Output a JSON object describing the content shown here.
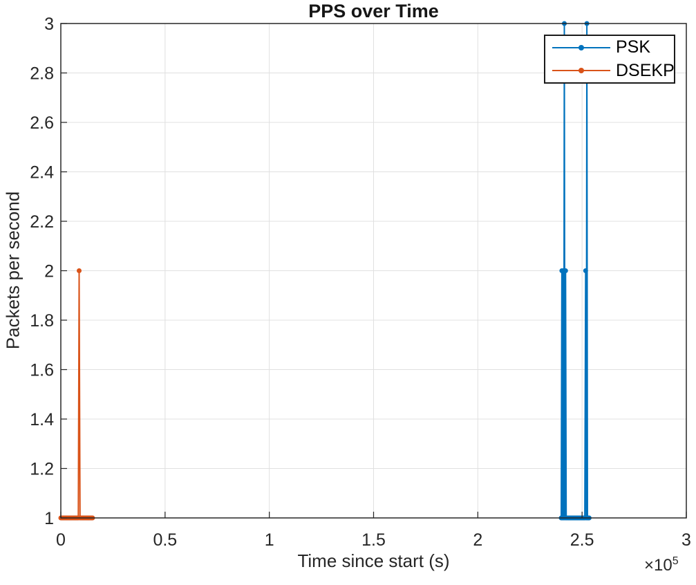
{
  "title": "PPS over Time",
  "axes": {
    "xlabel": "Time since start (s)",
    "ylabel": "Packets per second",
    "exponent_base": "×10",
    "exponent_power": "5"
  },
  "legend": {
    "position": "northeast",
    "entries": [
      {
        "label": "PSK",
        "color": "#0072BD"
      },
      {
        "label": "DSEKP",
        "color": "#D95319"
      }
    ]
  },
  "colors": {
    "grid": "#e0e0e0",
    "axis": "#262626",
    "tick_label": "#262626",
    "background": "#ffffff",
    "psk": "#0072BD",
    "dsekp": "#D95319"
  },
  "chart_data": {
    "type": "line",
    "title": "PPS over Time",
    "xlabel": "Time since start (s)",
    "ylabel": "Packets per second",
    "xlim": [
      0,
      300000
    ],
    "ylim": [
      1,
      3
    ],
    "grid": "on",
    "legend_position": "northeast",
    "x_multiplier_label": "×10⁵",
    "xticks": [
      {
        "v": 0,
        "label": "0"
      },
      {
        "v": 50000,
        "label": "0.5"
      },
      {
        "v": 100000,
        "label": "1"
      },
      {
        "v": 150000,
        "label": "1.5"
      },
      {
        "v": 200000,
        "label": "2"
      },
      {
        "v": 250000,
        "label": "2.5"
      },
      {
        "v": 300000,
        "label": "3"
      }
    ],
    "yticks": [
      {
        "v": 1,
        "label": "1"
      },
      {
        "v": 1.2,
        "label": "1.2"
      },
      {
        "v": 1.4,
        "label": "1.4"
      },
      {
        "v": 1.6,
        "label": "1.6"
      },
      {
        "v": 1.8,
        "label": "1.8"
      },
      {
        "v": 2,
        "label": "2"
      },
      {
        "v": 2.2,
        "label": "2.2"
      },
      {
        "v": 2.4,
        "label": "2.4"
      },
      {
        "v": 2.6,
        "label": "2.6"
      },
      {
        "v": 2.8,
        "label": "2.8"
      },
      {
        "v": 3,
        "label": "3"
      }
    ],
    "series": [
      {
        "name": "PSK",
        "color": "#0072BD",
        "marker": "dot",
        "points": [
          [
            240000,
            1
          ],
          [
            240300,
            2
          ],
          [
            240600,
            1
          ],
          [
            240900,
            2
          ],
          [
            241200,
            1
          ],
          [
            241500,
            3
          ],
          [
            241800,
            1
          ],
          [
            242100,
            2
          ],
          [
            242400,
            1
          ],
          [
            242900,
            1
          ],
          [
            243400,
            1
          ],
          [
            243900,
            1
          ],
          [
            244400,
            1
          ],
          [
            244900,
            1
          ],
          [
            245400,
            1
          ],
          [
            245900,
            1
          ],
          [
            246400,
            1
          ],
          [
            246900,
            1
          ],
          [
            247400,
            1
          ],
          [
            247900,
            1
          ],
          [
            248400,
            1
          ],
          [
            248900,
            1
          ],
          [
            249400,
            1
          ],
          [
            249900,
            1
          ],
          [
            250400,
            1
          ],
          [
            250900,
            1
          ],
          [
            251300,
            1
          ],
          [
            251700,
            2
          ],
          [
            252000,
            1
          ],
          [
            252300,
            3
          ],
          [
            252600,
            1
          ],
          [
            253000,
            1
          ],
          [
            253400,
            1
          ]
        ]
      },
      {
        "name": "DSEKP",
        "color": "#D95319",
        "marker": "dot",
        "points": [
          [
            0,
            1
          ],
          [
            400,
            1
          ],
          [
            800,
            1
          ],
          [
            1200,
            1
          ],
          [
            1600,
            1
          ],
          [
            2000,
            1
          ],
          [
            2400,
            1
          ],
          [
            2800,
            1
          ],
          [
            3200,
            1
          ],
          [
            3600,
            1
          ],
          [
            4000,
            1
          ],
          [
            4400,
            1
          ],
          [
            4800,
            1
          ],
          [
            5200,
            1
          ],
          [
            5600,
            1
          ],
          [
            6000,
            1
          ],
          [
            6400,
            1
          ],
          [
            6800,
            1
          ],
          [
            7200,
            1
          ],
          [
            7600,
            1
          ],
          [
            8000,
            1
          ],
          [
            8400,
            1
          ],
          [
            8800,
            2
          ],
          [
            9200,
            1
          ],
          [
            9600,
            1
          ],
          [
            10000,
            1
          ],
          [
            10400,
            1
          ],
          [
            10800,
            1
          ],
          [
            11200,
            1
          ],
          [
            11600,
            1
          ],
          [
            12000,
            1
          ],
          [
            12400,
            1
          ],
          [
            12800,
            1
          ],
          [
            13200,
            1
          ],
          [
            13600,
            1
          ],
          [
            14000,
            1
          ],
          [
            14400,
            1
          ],
          [
            14800,
            1
          ],
          [
            15200,
            1
          ]
        ]
      }
    ]
  }
}
